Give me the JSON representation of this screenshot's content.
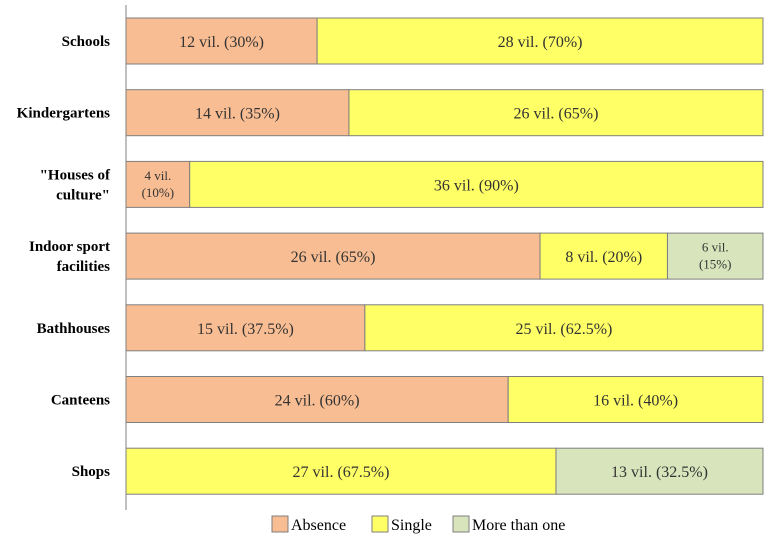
{
  "chart_data": {
    "type": "bar",
    "orientation": "horizontal",
    "stacked": "percent",
    "categories": [
      "Schools",
      "Kindergartens",
      "\"Houses of culture\"",
      "Indoor sport facilities",
      "Bathhouses",
      "Canteens",
      "Shops"
    ],
    "category_lines": [
      [
        "Schools"
      ],
      [
        "Kindergartens"
      ],
      [
        "\"Houses of",
        "culture\""
      ],
      [
        "Indoor sport",
        "facilities"
      ],
      [
        "Bathhouses"
      ],
      [
        "Canteens"
      ],
      [
        "Shops"
      ]
    ],
    "series": [
      {
        "name": "Absence",
        "color": "#F8BD92",
        "values": [
          30,
          35,
          10,
          65,
          37.5,
          60,
          0
        ],
        "villages": [
          12,
          14,
          4,
          26,
          15,
          24,
          0
        ],
        "labels": [
          [
            "12 vil. (30%)"
          ],
          [
            "14 vil. (35%)"
          ],
          [
            "4 vil.",
            "(10%)"
          ],
          [
            "26 vil. (65%)"
          ],
          [
            "15 vil. (37.5%)"
          ],
          [
            "24 vil. (60%)"
          ],
          []
        ]
      },
      {
        "name": "Single",
        "color": "#FFFF66",
        "values": [
          70,
          65,
          90,
          20,
          62.5,
          40,
          67.5
        ],
        "villages": [
          28,
          26,
          36,
          8,
          25,
          16,
          27
        ],
        "labels": [
          [
            "28 vil. (70%)"
          ],
          [
            "26 vil. (65%)"
          ],
          [
            "36 vil. (90%)"
          ],
          [
            "8 vil. (20%)"
          ],
          [
            "25 vil. (62.5%)"
          ],
          [
            "16 vil. (40%)"
          ],
          [
            "27 vil. (67.5%)"
          ]
        ]
      },
      {
        "name": "More than one",
        "color": "#D8E4BC",
        "values": [
          0,
          0,
          0,
          15,
          0,
          0,
          32.5
        ],
        "villages": [
          0,
          0,
          0,
          6,
          0,
          0,
          13
        ],
        "labels": [
          [],
          [],
          [],
          [
            "6 vil.",
            "(15%)"
          ],
          [],
          [],
          [
            "13 vil. (32.5%)"
          ]
        ]
      }
    ],
    "xlim": [
      0,
      100
    ],
    "legend_position": "bottom",
    "grid": false
  }
}
